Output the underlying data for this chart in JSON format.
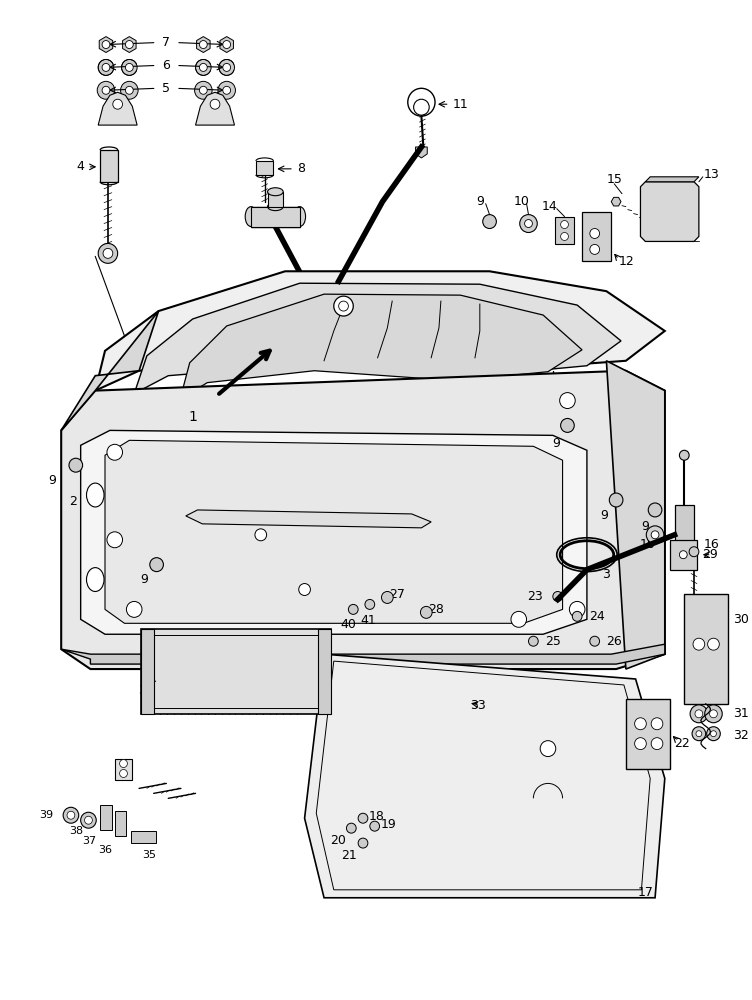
{
  "bg_color": "#ffffff",
  "fig_width": 7.52,
  "fig_height": 10.0,
  "dpi": 100,
  "lc": "black",
  "lw": 1.0
}
